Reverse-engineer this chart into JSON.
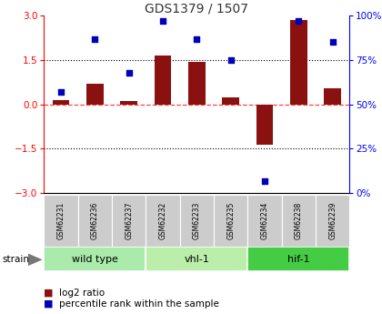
{
  "title": "GDS1379 / 1507",
  "samples": [
    "GSM62231",
    "GSM62236",
    "GSM62237",
    "GSM62232",
    "GSM62233",
    "GSM62235",
    "GSM62234",
    "GSM62238",
    "GSM62239"
  ],
  "log2_ratio": [
    0.15,
    0.7,
    0.12,
    1.65,
    1.45,
    0.25,
    -1.35,
    2.85,
    0.55
  ],
  "percentile": [
    57,
    87,
    68,
    97,
    87,
    75,
    7,
    97,
    85
  ],
  "groups": [
    {
      "label": "wild type",
      "count": 3,
      "color": "#aaeaaa"
    },
    {
      "label": "vhl-1",
      "count": 3,
      "color": "#bbeeaa"
    },
    {
      "label": "hif-1",
      "count": 3,
      "color": "#44cc44"
    }
  ],
  "ylim_left": [
    -3,
    3
  ],
  "ylim_right": [
    0,
    100
  ],
  "yticks_left": [
    -3,
    -1.5,
    0,
    1.5,
    3
  ],
  "yticks_right": [
    0,
    25,
    50,
    75,
    100
  ],
  "bar_color": "#8B1010",
  "dot_color": "#0000BB",
  "hline_color": "#FF4444",
  "bg_color": "#ffffff",
  "label_log2": "log2 ratio",
  "label_pct": "percentile rank within the sample",
  "strain_label": "strain"
}
